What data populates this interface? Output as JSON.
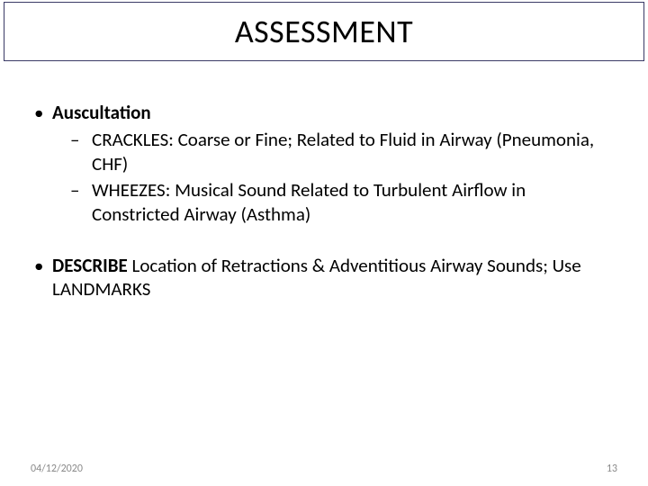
{
  "title": "ASSESSMENT",
  "bullets": {
    "b1": {
      "heading": "Auscultation"
    },
    "b1_1": "CRACKLES:  Coarse or Fine; Related to Fluid in Airway (Pneumonia, CHF)",
    "b1_2": "WHEEZES:  Musical Sound Related to Turbulent Airflow in Constricted Airway (Asthma)",
    "b2_bold": "DESCRIBE",
    "b2_rest": " Location of Retractions & Adventitious Airway Sounds; Use LANDMARKS"
  },
  "footer": {
    "date": "04/12/2020",
    "page": "13"
  }
}
